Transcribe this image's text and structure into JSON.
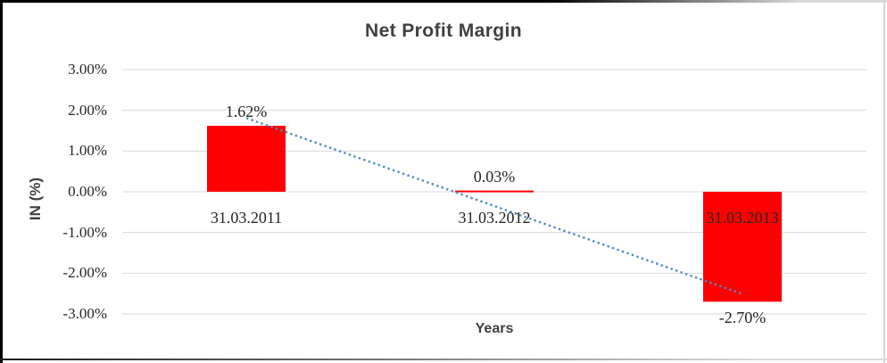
{
  "chart_data": {
    "type": "bar",
    "title": "Net Profit Margin",
    "xlabel": "Years",
    "ylabel": "IN (%)",
    "categories": [
      "31.03.2011",
      "31.03.2012",
      "31.03.2013"
    ],
    "values": [
      1.62,
      0.03,
      -2.7
    ],
    "data_labels": [
      "1.62%",
      "0.03%",
      "-2.70%"
    ],
    "ylim": [
      -3,
      3
    ],
    "ytick_step": 1,
    "ytick_labels": [
      "3.00%",
      "2.00%",
      "1.00%",
      "0.00%",
      "-1.00%",
      "-2.00%",
      "-3.00%"
    ],
    "grid": true,
    "legend": "none",
    "bar_color": "#FF0000",
    "gridline_color": "#D9D9D9",
    "tick_label_color": "#262626",
    "title_color": "#404040",
    "trendline": {
      "type": "linear",
      "style": "dotted",
      "color": "#4E8BC8",
      "y_at_first_category": 1.81,
      "y_at_last_category": -2.51
    }
  }
}
